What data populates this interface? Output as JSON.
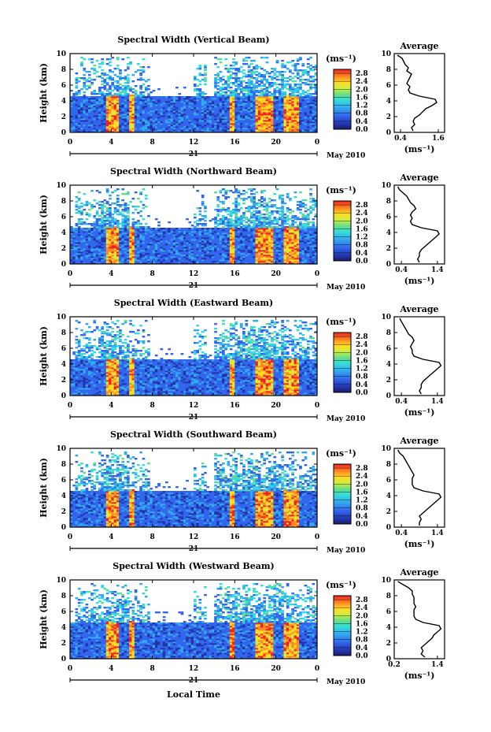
{
  "chart_data": [
    {
      "type": "heatmap",
      "title": "Spectral Width (Vertical Beam)",
      "ylabel": "Height (km)",
      "xticks": [
        "0",
        "4",
        "8",
        "12",
        "16",
        "20",
        "0"
      ],
      "yticks": [
        "0",
        "2",
        "4",
        "6",
        "8",
        "10"
      ],
      "xlim": [
        0,
        24
      ],
      "ylim": [
        0,
        10
      ],
      "date_day": "21",
      "date_label": "May 2010",
      "colorbar": {
        "unit": "(ms⁻¹)",
        "ticks": [
          "0.0",
          "0.4",
          "0.8",
          "1.2",
          "1.6",
          "2.0",
          "2.4",
          "2.8"
        ],
        "range": [
          0,
          3.0
        ]
      },
      "average": {
        "title": "Average",
        "xlabel": "(ms⁻¹)",
        "xticks": [
          "0.4",
          "1.6"
        ],
        "xlim": [
          0.2,
          1.8
        ],
        "yticks": [
          "0",
          "2",
          "4",
          "6",
          "8",
          "10"
        ],
        "height": [
          0.2,
          0.6,
          1.0,
          1.4,
          1.8,
          2.2,
          2.6,
          3.0,
          3.4,
          3.8,
          4.2,
          4.6,
          5.0,
          5.4,
          5.8,
          6.2,
          6.6,
          7.0,
          7.4,
          7.8,
          8.2,
          8.6,
          9.0,
          9.4,
          9.8
        ],
        "values": [
          0.8,
          0.75,
          0.85,
          0.8,
          0.85,
          1.0,
          1.1,
          1.2,
          1.4,
          1.55,
          1.5,
          1.0,
          0.7,
          0.65,
          0.7,
          0.6,
          0.65,
          0.7,
          0.75,
          0.6,
          0.65,
          0.55,
          0.5,
          0.45,
          0.3
        ]
      }
    },
    {
      "type": "heatmap",
      "title": "Spectral Width (Northward Beam)",
      "ylabel": "Height (km)",
      "xticks": [
        "0",
        "4",
        "8",
        "12",
        "16",
        "20",
        "0"
      ],
      "yticks": [
        "0",
        "2",
        "4",
        "6",
        "8",
        "10"
      ],
      "xlim": [
        0,
        24
      ],
      "ylim": [
        0,
        10
      ],
      "date_day": "21",
      "date_label": "May 2010",
      "colorbar": {
        "unit": "(ms⁻¹)",
        "ticks": [
          "0.0",
          "0.4",
          "0.8",
          "1.2",
          "1.6",
          "2.0",
          "2.4",
          "2.8"
        ],
        "range": [
          0,
          3.0
        ]
      },
      "average": {
        "title": "Average",
        "xlabel": "(ms⁻¹)",
        "xticks": [
          "0.4",
          "1.4"
        ],
        "xlim": [
          0.2,
          1.6
        ],
        "yticks": [
          "0",
          "2",
          "4",
          "6",
          "8",
          "10"
        ],
        "height": [
          0.2,
          0.6,
          1.0,
          1.4,
          1.8,
          2.2,
          2.6,
          3.0,
          3.4,
          3.8,
          4.2,
          4.6,
          5.0,
          5.4,
          5.8,
          6.2,
          6.6,
          7.0,
          7.4,
          7.8,
          8.2,
          8.6,
          9.0,
          9.4,
          9.8
        ],
        "values": [
          0.9,
          0.85,
          0.9,
          0.9,
          0.95,
          1.05,
          1.15,
          1.25,
          1.35,
          1.45,
          1.4,
          0.95,
          0.7,
          0.65,
          0.7,
          0.65,
          0.7,
          0.8,
          0.75,
          0.65,
          0.6,
          0.55,
          0.45,
          0.35,
          0.3
        ]
      }
    },
    {
      "type": "heatmap",
      "title": "Spectral Width (Eastward Beam)",
      "ylabel": "Height (km)",
      "xticks": [
        "0",
        "4",
        "8",
        "12",
        "16",
        "20",
        "0"
      ],
      "yticks": [
        "0",
        "2",
        "4",
        "6",
        "8",
        "10"
      ],
      "xlim": [
        0,
        24
      ],
      "ylim": [
        0,
        10
      ],
      "date_day": "21",
      "date_label": "May 2010",
      "colorbar": {
        "unit": "(ms⁻¹)",
        "ticks": [
          "0.0",
          "0.4",
          "0.8",
          "1.2",
          "1.6",
          "2.0",
          "2.4",
          "2.8"
        ],
        "range": [
          0,
          3.0
        ]
      },
      "average": {
        "title": "Average",
        "xlabel": "(ms⁻¹)",
        "xticks": [
          "0.4",
          "1.4"
        ],
        "xlim": [
          0.2,
          1.6
        ],
        "yticks": [
          "0",
          "2",
          "4",
          "6",
          "8",
          "10"
        ],
        "height": [
          0.2,
          0.6,
          1.0,
          1.4,
          1.8,
          2.2,
          2.6,
          3.0,
          3.4,
          3.8,
          4.2,
          4.6,
          5.0,
          5.4,
          5.8,
          6.2,
          6.6,
          7.0,
          7.4,
          7.8,
          8.2,
          8.6,
          9.0,
          9.4,
          9.8
        ],
        "values": [
          0.95,
          0.9,
          0.95,
          0.95,
          1.0,
          1.1,
          1.2,
          1.3,
          1.4,
          1.5,
          1.45,
          1.0,
          0.75,
          0.7,
          0.7,
          0.65,
          0.7,
          0.75,
          0.7,
          0.6,
          0.55,
          0.5,
          0.45,
          0.4,
          0.35
        ]
      }
    },
    {
      "type": "heatmap",
      "title": "Spectral Width (Southward Beam)",
      "ylabel": "Height (km)",
      "xticks": [
        "0",
        "4",
        "8",
        "12",
        "16",
        "20",
        "0"
      ],
      "yticks": [
        "0",
        "2",
        "4",
        "6",
        "8",
        "10"
      ],
      "xlim": [
        0,
        24
      ],
      "ylim": [
        0,
        10
      ],
      "date_day": "21",
      "date_label": "May 2010",
      "colorbar": {
        "unit": "(ms⁻¹)",
        "ticks": [
          "0.0",
          "0.4",
          "0.8",
          "1.2",
          "1.6",
          "2.0",
          "2.4",
          "2.8"
        ],
        "range": [
          0,
          3.0
        ]
      },
      "average": {
        "title": "Average",
        "xlabel": "(ms⁻¹)",
        "xticks": [
          "0.4",
          "1.4"
        ],
        "xlim": [
          0.2,
          1.6
        ],
        "yticks": [
          "0",
          "2",
          "4",
          "6",
          "8",
          "10"
        ],
        "height": [
          0.2,
          0.6,
          1.0,
          1.4,
          1.8,
          2.2,
          2.6,
          3.0,
          3.4,
          3.8,
          4.2,
          4.6,
          5.0,
          5.4,
          5.8,
          6.2,
          6.6,
          7.0,
          7.4,
          7.8,
          8.2,
          8.6,
          9.0,
          9.4,
          9.8
        ],
        "values": [
          0.9,
          0.9,
          0.95,
          0.9,
          1.0,
          1.1,
          1.2,
          1.3,
          1.4,
          1.5,
          1.45,
          1.0,
          0.75,
          0.7,
          0.7,
          0.7,
          0.75,
          0.7,
          0.65,
          0.6,
          0.55,
          0.5,
          0.45,
          0.35,
          0.3
        ]
      }
    },
    {
      "type": "heatmap",
      "title": "Spectral Width (Westward Beam)",
      "ylabel": "Height (km)",
      "xlabel": "Local Time",
      "xticks": [
        "0",
        "4",
        "8",
        "12",
        "16",
        "20",
        "0"
      ],
      "yticks": [
        "0",
        "2",
        "4",
        "6",
        "8",
        "10"
      ],
      "xlim": [
        0,
        24
      ],
      "ylim": [
        0,
        10
      ],
      "date_day": "21",
      "date_label": "May 2010",
      "colorbar": {
        "unit": "(ms⁻¹)",
        "ticks": [
          "0.0",
          "0.4",
          "0.8",
          "1.2",
          "1.6",
          "2.0",
          "2.4",
          "2.8"
        ],
        "range": [
          0,
          3.0
        ]
      },
      "average": {
        "title": "Average",
        "xlabel": "(ms⁻¹)",
        "xticks": [
          "0.2",
          "1.4"
        ],
        "xlim": [
          0.2,
          1.6
        ],
        "yticks": [
          "0",
          "2",
          "4",
          "6",
          "8",
          "10"
        ],
        "height": [
          0.2,
          0.6,
          1.0,
          1.4,
          1.8,
          2.2,
          2.6,
          3.0,
          3.4,
          3.8,
          4.2,
          4.6,
          5.0,
          5.4,
          5.8,
          6.2,
          6.6,
          7.0,
          7.4,
          7.8,
          8.2,
          8.6,
          9.0,
          9.4,
          9.8
        ],
        "values": [
          1.05,
          0.95,
          1.0,
          0.95,
          1.05,
          1.15,
          1.25,
          1.3,
          1.4,
          1.5,
          1.45,
          1.0,
          0.8,
          0.75,
          0.75,
          0.75,
          0.8,
          0.75,
          0.75,
          0.75,
          0.7,
          0.7,
          0.6,
          0.45,
          0.3
        ]
      }
    }
  ]
}
